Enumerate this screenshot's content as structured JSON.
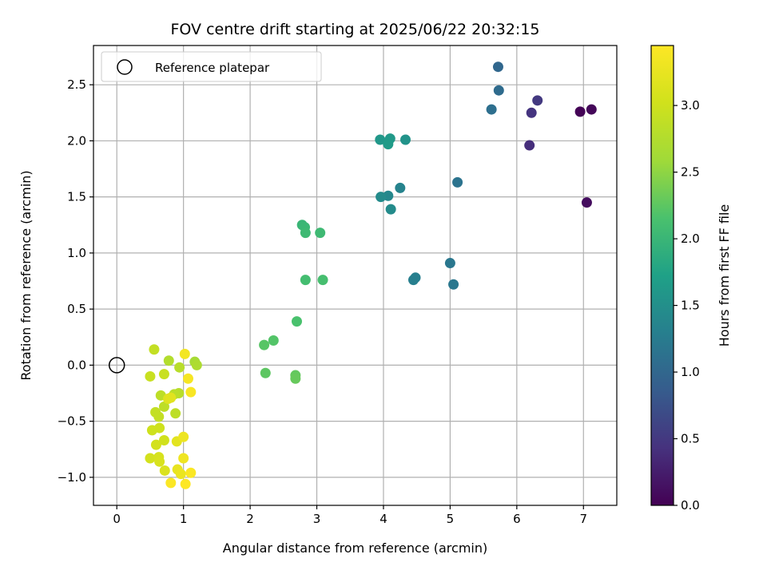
{
  "chart_data": {
    "type": "scatter",
    "title": "FOV centre drift starting at 2025/06/22 20:32:15",
    "xlabel": "Angular distance from reference (arcmin)",
    "ylabel": "Rotation from reference (arcmin)",
    "xlim": [
      -0.35,
      7.5
    ],
    "ylim": [
      -1.25,
      2.85
    ],
    "xticks": [
      0,
      1,
      2,
      3,
      4,
      5,
      6,
      7
    ],
    "xtick_labels": [
      "0",
      "1",
      "2",
      "3",
      "4",
      "5",
      "6",
      "7"
    ],
    "yticks": [
      -1.0,
      -0.5,
      0.0,
      0.5,
      1.0,
      1.5,
      2.0,
      2.5
    ],
    "ytick_labels": [
      "−1.0",
      "−0.5",
      "0.0",
      "0.5",
      "1.0",
      "1.5",
      "2.0",
      "2.5"
    ],
    "grid": true,
    "legend": {
      "position": "top-left",
      "entries": [
        {
          "label": "Reference platepar",
          "marker": "open-circle"
        }
      ]
    },
    "reference_point": {
      "x": 0,
      "y": 0
    },
    "colorbar": {
      "label": "Hours from first FF file",
      "colormap": "viridis",
      "range": [
        0.0,
        3.45
      ],
      "ticks": [
        0.0,
        0.5,
        1.0,
        1.5,
        2.0,
        2.5,
        3.0
      ],
      "tick_labels": [
        "0.0",
        "0.5",
        "1.0",
        "1.5",
        "2.0",
        "2.5",
        "3.0"
      ]
    },
    "points": [
      {
        "x": 6.95,
        "y": 2.26,
        "c": 0.02
      },
      {
        "x": 7.12,
        "y": 2.28,
        "c": 0.05
      },
      {
        "x": 7.05,
        "y": 1.45,
        "c": 0.1
      },
      {
        "x": 6.19,
        "y": 1.96,
        "c": 0.4
      },
      {
        "x": 6.22,
        "y": 2.25,
        "c": 0.45
      },
      {
        "x": 6.31,
        "y": 2.36,
        "c": 0.5
      },
      {
        "x": 5.72,
        "y": 2.66,
        "c": 1.0
      },
      {
        "x": 5.73,
        "y": 2.45,
        "c": 1.05
      },
      {
        "x": 5.62,
        "y": 2.28,
        "c": 1.1
      },
      {
        "x": 5.11,
        "y": 1.63,
        "c": 1.15
      },
      {
        "x": 5.0,
        "y": 0.91,
        "c": 1.2
      },
      {
        "x": 5.05,
        "y": 0.72,
        "c": 1.2
      },
      {
        "x": 4.48,
        "y": 0.78,
        "c": 1.3
      },
      {
        "x": 4.45,
        "y": 0.76,
        "c": 1.3
      },
      {
        "x": 4.25,
        "y": 1.58,
        "c": 1.35
      },
      {
        "x": 4.07,
        "y": 1.51,
        "c": 1.4
      },
      {
        "x": 3.96,
        "y": 1.5,
        "c": 1.45
      },
      {
        "x": 4.11,
        "y": 1.39,
        "c": 1.45
      },
      {
        "x": 4.33,
        "y": 2.01,
        "c": 1.55
      },
      {
        "x": 3.95,
        "y": 2.01,
        "c": 1.6
      },
      {
        "x": 4.1,
        "y": 2.02,
        "c": 1.62
      },
      {
        "x": 4.07,
        "y": 1.97,
        "c": 1.65
      },
      {
        "x": 2.78,
        "y": 1.25,
        "c": 2.0
      },
      {
        "x": 2.82,
        "y": 1.23,
        "c": 2.02
      },
      {
        "x": 2.83,
        "y": 1.18,
        "c": 2.05
      },
      {
        "x": 3.05,
        "y": 1.18,
        "c": 2.05
      },
      {
        "x": 2.83,
        "y": 0.76,
        "c": 2.1
      },
      {
        "x": 3.09,
        "y": 0.76,
        "c": 2.12
      },
      {
        "x": 2.7,
        "y": 0.39,
        "c": 2.15
      },
      {
        "x": 2.35,
        "y": 0.22,
        "c": 2.2
      },
      {
        "x": 2.21,
        "y": 0.18,
        "c": 2.22
      },
      {
        "x": 2.23,
        "y": -0.07,
        "c": 2.25
      },
      {
        "x": 2.68,
        "y": -0.09,
        "c": 2.28
      },
      {
        "x": 2.68,
        "y": -0.12,
        "c": 2.3
      },
      {
        "x": 1.17,
        "y": 0.03,
        "c": 2.65
      },
      {
        "x": 1.2,
        "y": 0.0,
        "c": 2.7
      },
      {
        "x": 0.78,
        "y": 0.04,
        "c": 2.75
      },
      {
        "x": 0.94,
        "y": -0.02,
        "c": 2.8
      },
      {
        "x": 0.93,
        "y": -0.25,
        "c": 2.8
      },
      {
        "x": 0.86,
        "y": -0.26,
        "c": 2.82
      },
      {
        "x": 0.66,
        "y": -0.27,
        "c": 2.85
      },
      {
        "x": 0.71,
        "y": -0.37,
        "c": 2.85
      },
      {
        "x": 0.88,
        "y": -0.43,
        "c": 2.85
      },
      {
        "x": 0.58,
        "y": -0.42,
        "c": 2.9
      },
      {
        "x": 0.63,
        "y": -0.46,
        "c": 2.9
      },
      {
        "x": 0.56,
        "y": 0.14,
        "c": 2.9
      },
      {
        "x": 0.71,
        "y": -0.08,
        "c": 2.95
      },
      {
        "x": 0.5,
        "y": -0.1,
        "c": 2.95
      },
      {
        "x": 0.64,
        "y": -0.56,
        "c": 3.0
      },
      {
        "x": 0.53,
        "y": -0.58,
        "c": 3.0
      },
      {
        "x": 0.71,
        "y": -0.67,
        "c": 3.02
      },
      {
        "x": 0.59,
        "y": -0.71,
        "c": 3.05
      },
      {
        "x": 0.5,
        "y": -0.83,
        "c": 3.05
      },
      {
        "x": 0.63,
        "y": -0.82,
        "c": 3.08
      },
      {
        "x": 0.64,
        "y": -0.86,
        "c": 3.1
      },
      {
        "x": 0.72,
        "y": -0.94,
        "c": 3.12
      },
      {
        "x": 0.77,
        "y": -0.3,
        "c": 3.15
      },
      {
        "x": 0.81,
        "y": -0.29,
        "c": 3.18
      },
      {
        "x": 0.9,
        "y": -0.68,
        "c": 3.2
      },
      {
        "x": 0.91,
        "y": -0.93,
        "c": 3.25
      },
      {
        "x": 0.96,
        "y": -0.97,
        "c": 3.28
      },
      {
        "x": 1.0,
        "y": -0.64,
        "c": 3.3
      },
      {
        "x": 1.0,
        "y": -0.83,
        "c": 3.32
      },
      {
        "x": 1.02,
        "y": 0.1,
        "c": 3.35
      },
      {
        "x": 1.07,
        "y": -0.12,
        "c": 3.38
      },
      {
        "x": 1.11,
        "y": -0.24,
        "c": 3.4
      },
      {
        "x": 1.11,
        "y": -0.96,
        "c": 3.42
      },
      {
        "x": 0.81,
        "y": -1.05,
        "c": 3.43
      },
      {
        "x": 1.03,
        "y": -1.06,
        "c": 3.45
      }
    ]
  }
}
